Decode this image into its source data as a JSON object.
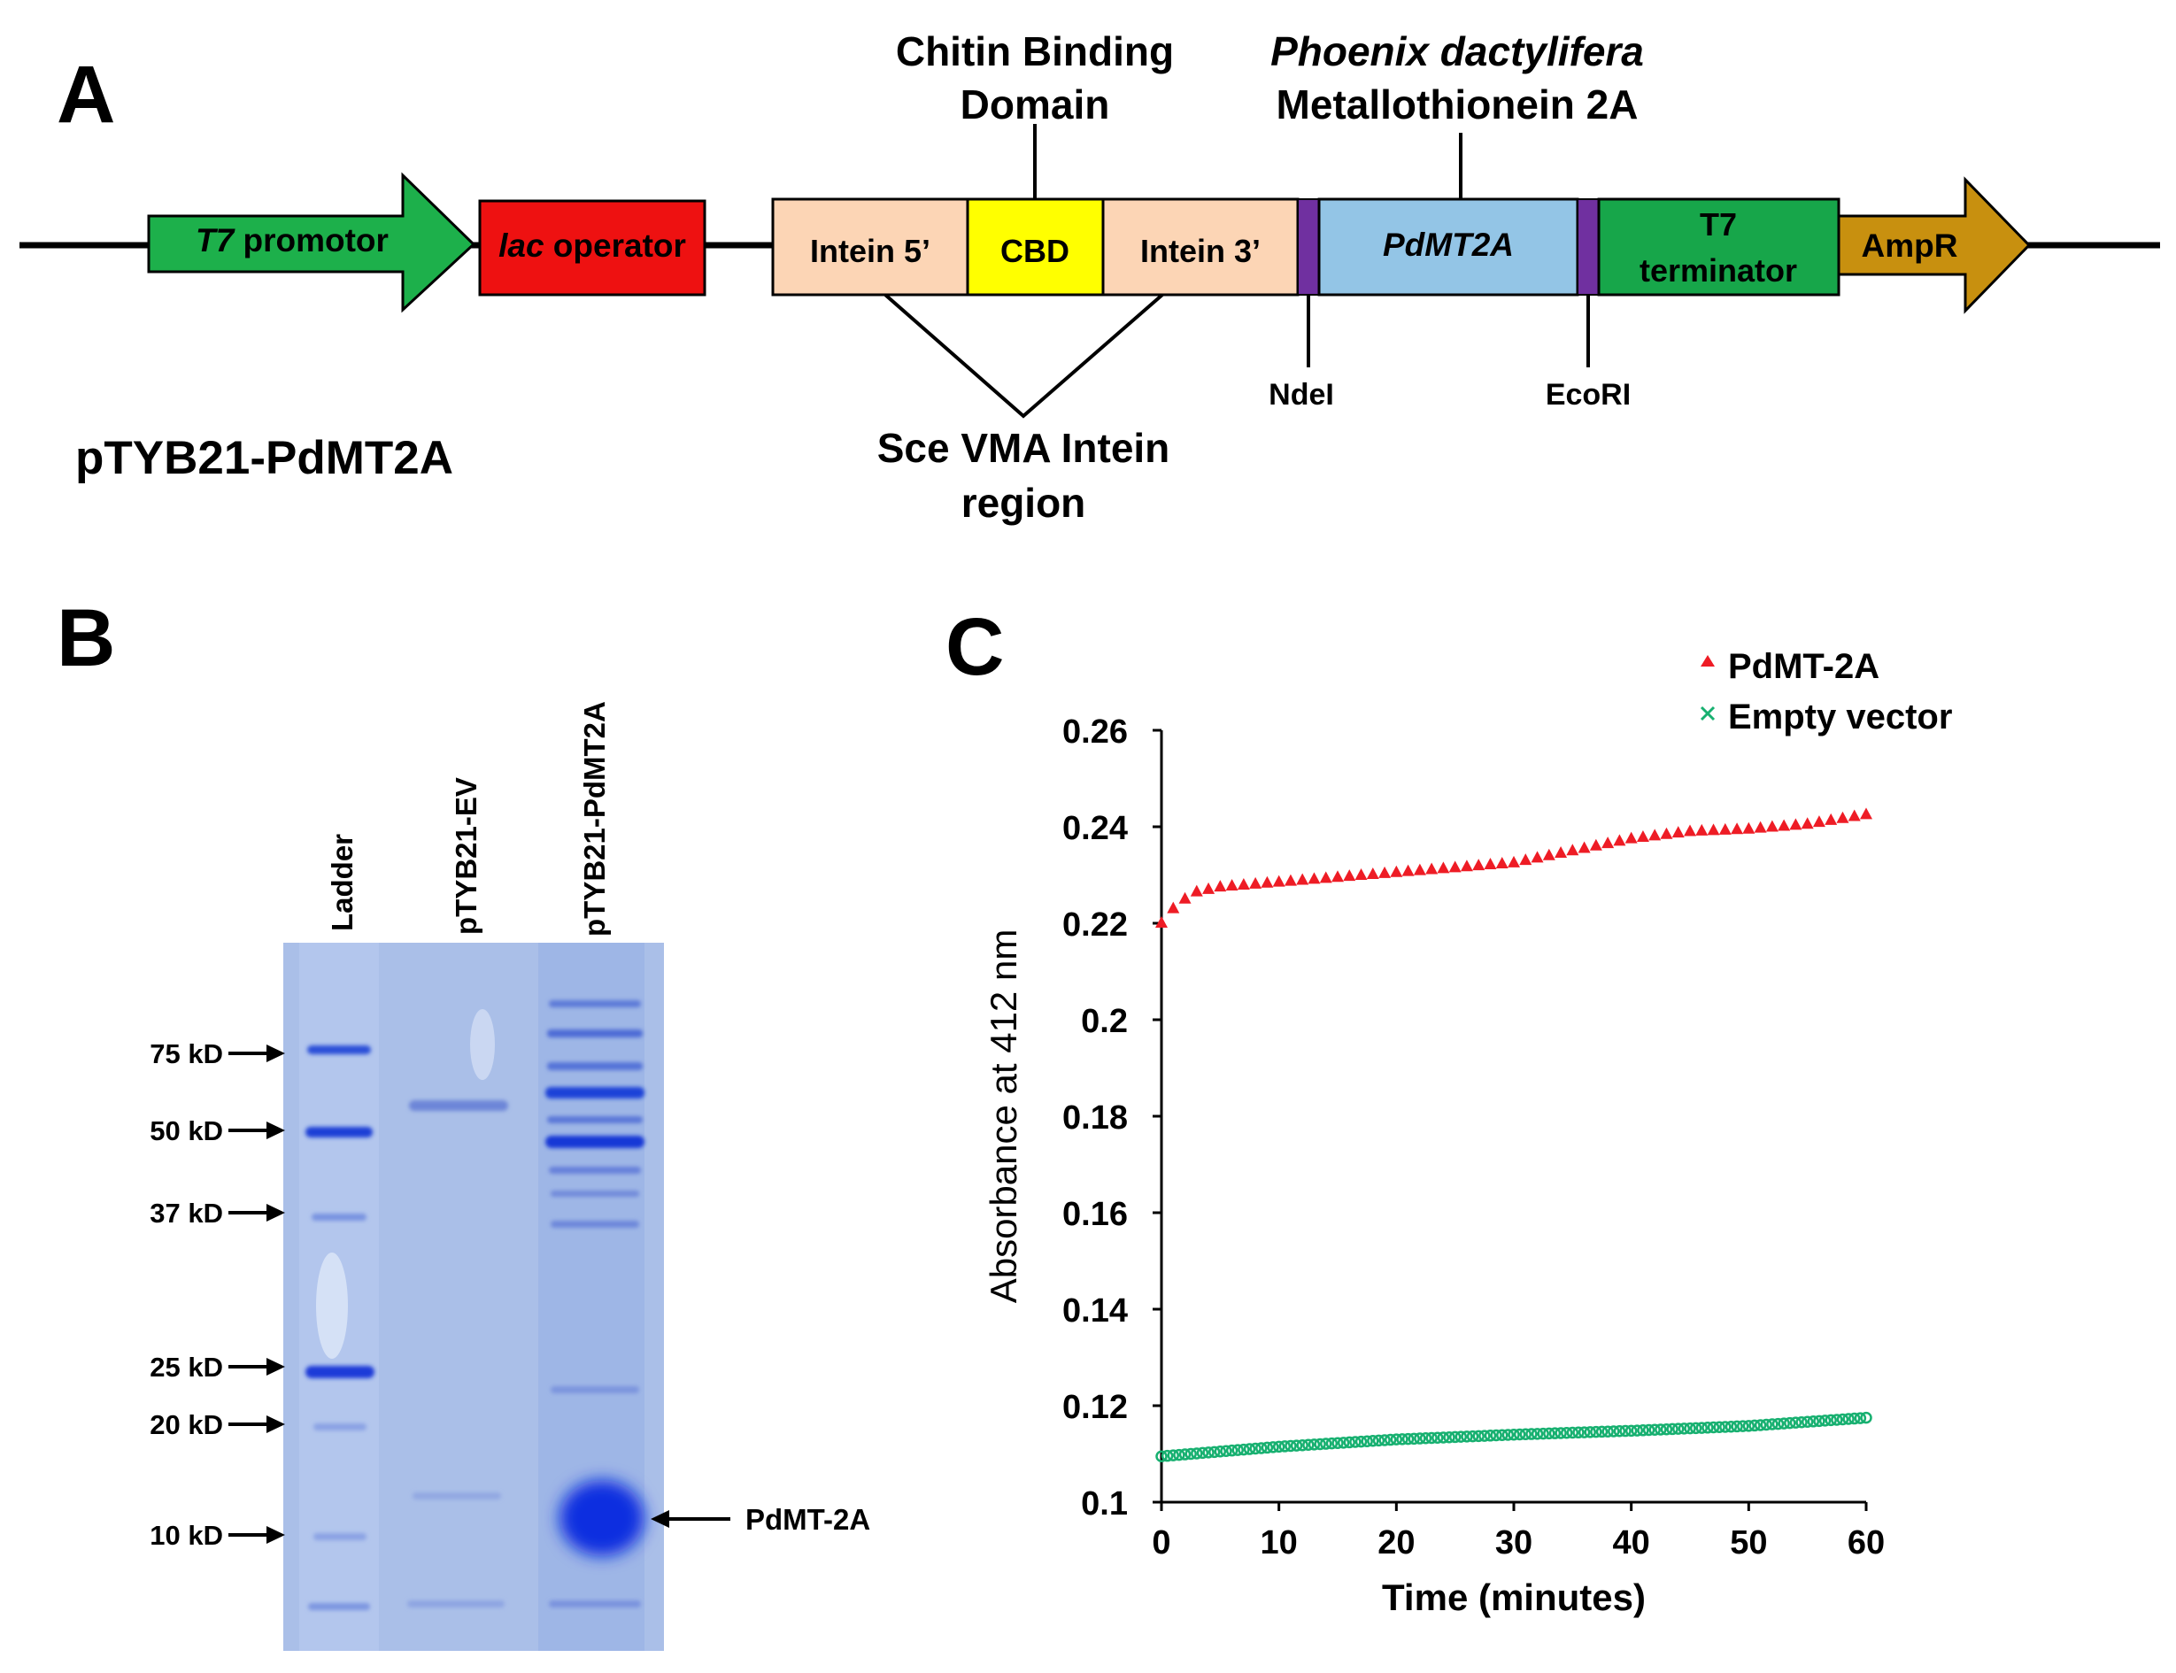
{
  "panel_a": {
    "letter": "A",
    "plasmid_name": "pTYB21-PdMT2A",
    "t7_promoter": {
      "italic": "T7",
      "rest": " promotor"
    },
    "lac_operator": {
      "italic": "lac",
      "rest": " operator"
    },
    "intein5": "Intein 5’",
    "cbd": "CBD",
    "intein3": "Intein 3’",
    "pdmt2a": "PdMT2A",
    "t7_terminator_line1": "T7",
    "t7_terminator_line2": "terminator",
    "ampr": "AmpR",
    "chitin_line1": "Chitin Binding",
    "chitin_line2": "Domain",
    "species": "Phoenix dactylifera",
    "metallothionein": "Metallothionein 2A",
    "sce_line1": "Sce VMA Intein",
    "sce_line2": "region",
    "ndei": "NdeI",
    "ecori": "EcoRI",
    "colors": {
      "promoter": "#1db04b",
      "lac": "#ee1111",
      "intein": "#fcd5b5",
      "cbd": "#ffff00",
      "pdmt2a": "#93c5e6",
      "terminator": "#17a64a",
      "ampr": "#c8900f",
      "site": "#7030a0"
    }
  },
  "panel_b": {
    "letter": "B",
    "lanes": [
      "Ladder",
      "pTYB21-EV",
      "pTYB21-PdMT2A"
    ],
    "markers": [
      "75 kD",
      "50 kD",
      "37 kD",
      "25 kD",
      "20 kD",
      "10 kD"
    ],
    "band_label": "PdMT-2A",
    "gel_color": "#aabfe8"
  },
  "panel_c": {
    "letter": "C",
    "legend": [
      {
        "name": "PdMT-2A",
        "marker": "▲",
        "color": "#ee1c25"
      },
      {
        "name": "Empty vector",
        "marker": "×",
        "color": "#17b070"
      }
    ]
  },
  "chart_data": {
    "type": "scatter",
    "title": "",
    "xlabel": "Time (minutes)",
    "ylabel": "Absorbance at 412 nm",
    "xlim": [
      0,
      60
    ],
    "ylim": [
      0.1,
      0.26
    ],
    "x_ticks": [
      0,
      10,
      20,
      30,
      40,
      50,
      60
    ],
    "y_ticks": [
      0.1,
      0.12,
      0.14,
      0.16,
      0.18,
      0.2,
      0.22,
      0.24,
      0.26
    ],
    "y_tick_labels": [
      "0.1",
      "0.12",
      "0.14",
      "0.16",
      "0.18",
      "0.2",
      "0.22",
      "0.24",
      "0.26"
    ],
    "legend_position": "top-right",
    "series": [
      {
        "name": "PdMT-2A",
        "color": "#ee1c25",
        "marker": "triangle",
        "x_start": 0,
        "x_end": 60,
        "x_step": 1,
        "anchors": [
          [
            0,
            0.22
          ],
          [
            1,
            0.223
          ],
          [
            2,
            0.225
          ],
          [
            3,
            0.2265
          ],
          [
            5,
            0.2275
          ],
          [
            10,
            0.2285
          ],
          [
            20,
            0.2305
          ],
          [
            30,
            0.2325
          ],
          [
            40,
            0.2375
          ],
          [
            45,
            0.239
          ],
          [
            50,
            0.2395
          ],
          [
            55,
            0.2405
          ],
          [
            60,
            0.2425
          ]
        ]
      },
      {
        "name": "Empty vector",
        "color": "#17b070",
        "marker": "x",
        "x_start": 0,
        "x_end": 60,
        "x_step": 0.5,
        "anchors": [
          [
            0,
            0.1095
          ],
          [
            10,
            0.1115
          ],
          [
            20,
            0.113
          ],
          [
            30,
            0.114
          ],
          [
            40,
            0.1148
          ],
          [
            50,
            0.1158
          ],
          [
            60,
            0.1175
          ]
        ]
      }
    ]
  }
}
